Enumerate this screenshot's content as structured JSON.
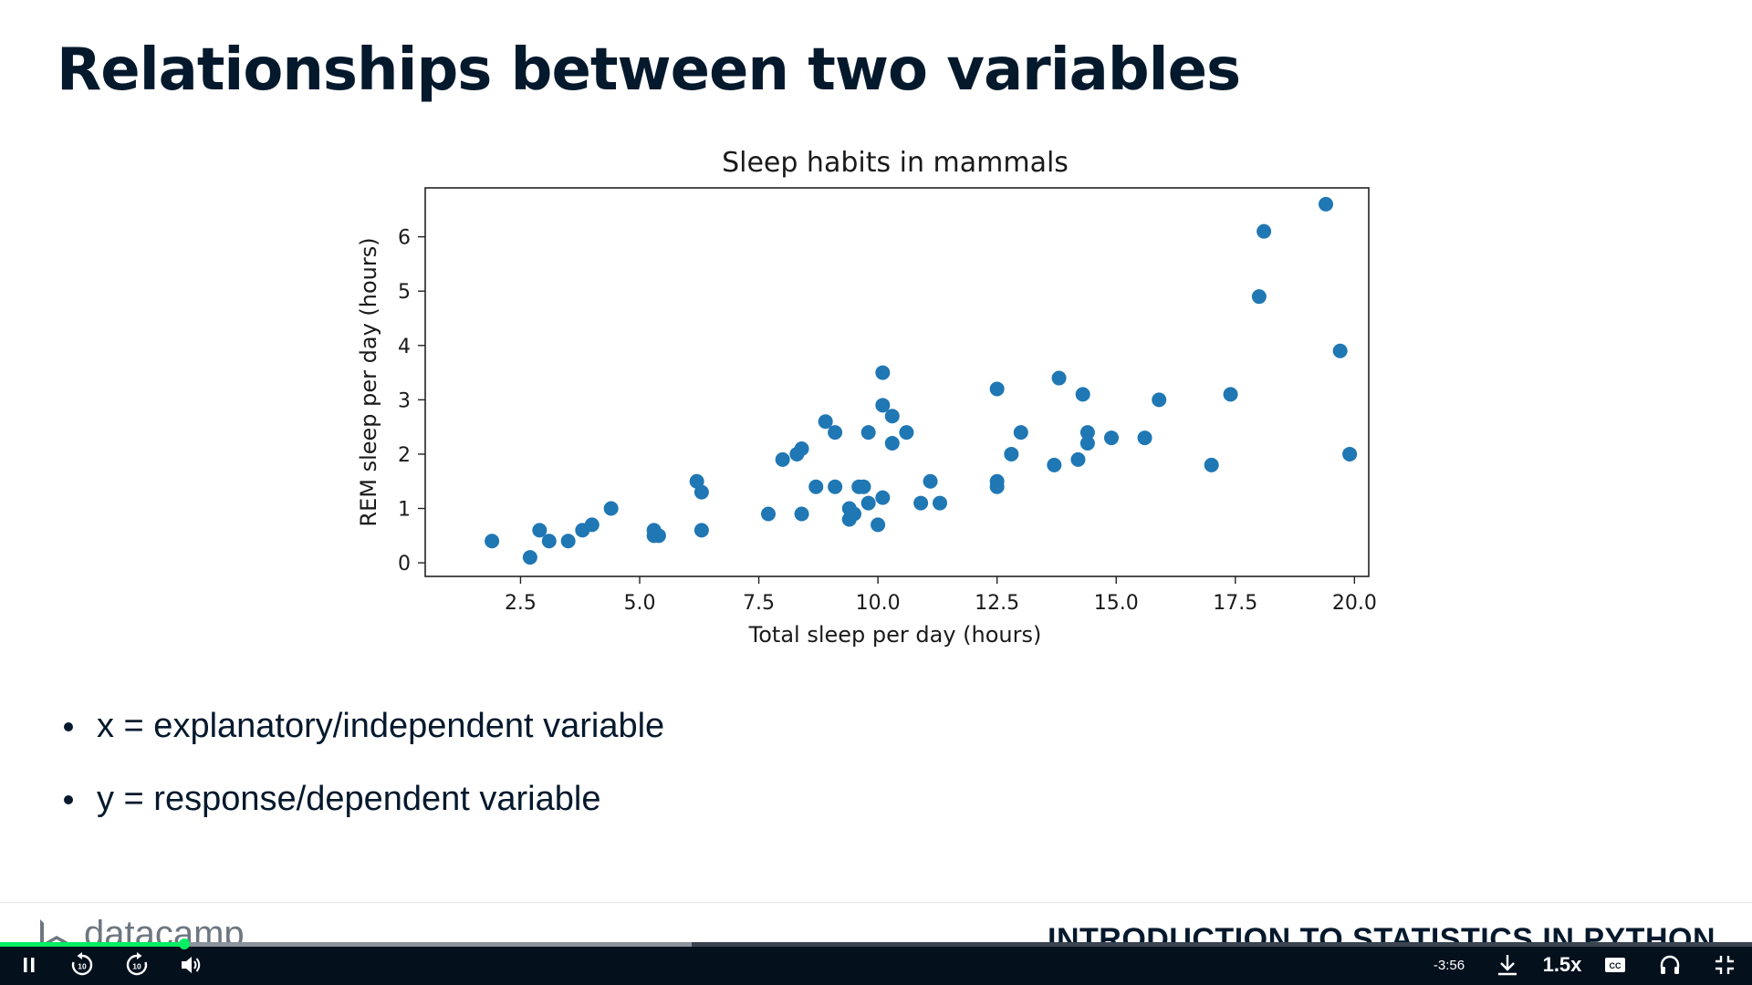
{
  "slide": {
    "title": "Relationships between two variables",
    "bullets": [
      "x = explanatory/independent variable",
      "y = response/dependent variable"
    ],
    "brand": "datacamp",
    "course_title": "INTRODUCTION TO STATISTICS IN PYTHON"
  },
  "chart_data": {
    "type": "scatter",
    "title": "Sleep habits in mammals",
    "xlabel": "Total sleep per day (hours)",
    "ylabel": "REM sleep per day (hours)",
    "xlim": [
      0.5,
      20.3
    ],
    "ylim": [
      -0.25,
      6.9
    ],
    "xticks": [
      "2.5",
      "5.0",
      "7.5",
      "10.0",
      "12.5",
      "15.0",
      "17.5",
      "20.0"
    ],
    "yticks": [
      "0",
      "1",
      "2",
      "3",
      "4",
      "5",
      "6"
    ],
    "grid": false,
    "color": "#1f77b4",
    "x": [
      1.9,
      2.7,
      2.9,
      3.1,
      3.5,
      3.8,
      4.0,
      4.4,
      5.3,
      5.4,
      5.3,
      6.2,
      6.3,
      6.3,
      7.7,
      8.0,
      8.3,
      8.4,
      8.4,
      8.7,
      8.9,
      9.1,
      9.1,
      9.4,
      9.4,
      9.5,
      9.6,
      9.7,
      9.8,
      9.8,
      10.0,
      10.1,
      10.1,
      10.1,
      10.3,
      10.3,
      10.6,
      10.9,
      11.1,
      11.3,
      12.5,
      12.5,
      12.5,
      12.8,
      13.0,
      13.7,
      13.8,
      14.2,
      14.3,
      14.4,
      14.4,
      14.9,
      15.6,
      15.9,
      17.0,
      17.4,
      18.0,
      18.1,
      19.4,
      19.7,
      19.9
    ],
    "y": [
      0.4,
      0.1,
      0.6,
      0.4,
      0.4,
      0.6,
      0.7,
      1.0,
      0.6,
      0.5,
      0.5,
      1.5,
      1.3,
      0.6,
      0.9,
      1.9,
      2.0,
      2.1,
      0.9,
      1.4,
      2.6,
      2.4,
      1.4,
      1.0,
      0.8,
      0.9,
      1.4,
      1.4,
      1.1,
      2.4,
      0.7,
      3.5,
      2.9,
      1.2,
      2.7,
      2.2,
      2.4,
      1.1,
      1.5,
      1.1,
      3.2,
      1.5,
      1.4,
      2.0,
      2.4,
      1.8,
      3.4,
      1.9,
      3.1,
      2.4,
      2.2,
      2.3,
      2.3,
      3.0,
      1.8,
      3.1,
      4.9,
      6.1,
      6.6,
      3.9,
      2.0
    ]
  },
  "player": {
    "time_remaining": "-3:56",
    "speed": "1.5x",
    "progress_played": 0.105,
    "progress_buffered": 0.395,
    "icons": [
      "pause-icon",
      "rewind-10-icon",
      "forward-10-icon",
      "volume-icon",
      "download-icon",
      "captions-icon",
      "headphones-icon",
      "exit-fullscreen-icon"
    ]
  }
}
